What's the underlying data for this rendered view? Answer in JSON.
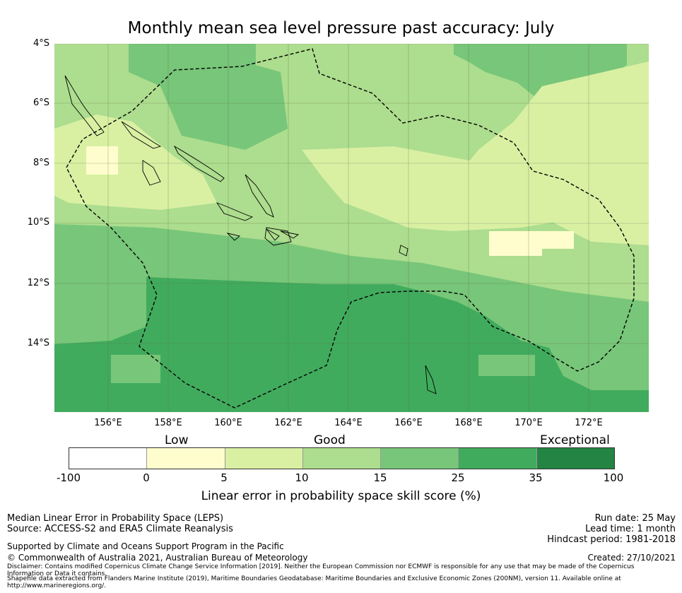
{
  "title": "Monthly mean sea level pressure past accuracy: July",
  "map": {
    "lat_labels": [
      "4°S",
      "6°S",
      "8°S",
      "10°S",
      "12°S",
      "14°S"
    ],
    "lon_labels": [
      "156°E",
      "158°E",
      "160°E",
      "162°E",
      "164°E",
      "166°E",
      "168°E",
      "170°E",
      "172°E"
    ],
    "region_outline": "dashed black boundary (200NM maritime zone)"
  },
  "colorbar": {
    "categories": [
      "Low",
      "Good",
      "Exceptional"
    ],
    "ticks": [
      "-100",
      "0",
      "5",
      "10",
      "15",
      "25",
      "35",
      "100"
    ],
    "colors": [
      "#ffffff",
      "#fffdcd",
      "#d9f0a3",
      "#addd8e",
      "#78c679",
      "#41ab5d",
      "#238443"
    ],
    "label": "Linear error in probability space skill score (%)"
  },
  "footer": {
    "left1": "Median Linear Error in Probability Space (LEPS)",
    "left2": "Source: ACCESS-S2 and ERA5 Climate Reanalysis",
    "support": "Supported by Climate and Oceans Support Program in the Pacific",
    "copyright": "© Commonwealth of Australia 2021, Australian Bureau of Meteorology",
    "disclaimer": "Disclaimer: Contains modified Copernicus Climate Change Service Information [2019]. Neither the European Commission nor ECMWF is responsible for any use that may be made of the Copernicus Information or Data it contains.",
    "shapefile": "Shapefile data extracted from Flanders Marine Institute (2019), Maritime Boundaries Geodatabase: Maritime Boundaries and Exclusive Economic Zones (200NM), version 11. Available online at http://www.marineregions.org/.",
    "run_date": "Run date: 25 May",
    "lead_time": "Lead time: 1 month",
    "hindcast": "Hindcast period: 1981-2018",
    "created": "Created: 27/10/2021"
  }
}
